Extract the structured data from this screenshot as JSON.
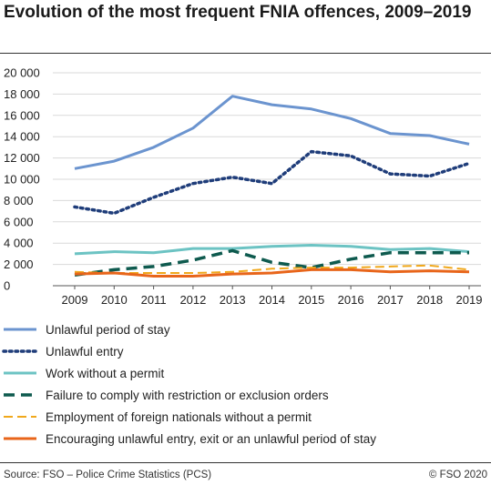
{
  "title": "Evolution of the most frequent FNIA offences, 2009–2019",
  "source": "Source: FSO – Police Crime Statistics (PCS)",
  "copyright": "© FSO 2020",
  "chart_data": {
    "type": "line",
    "x": [
      "2009",
      "2010",
      "2011",
      "2012",
      "2013",
      "2014",
      "2015",
      "2016",
      "2017",
      "2018",
      "2019"
    ],
    "ylim": [
      0,
      20000
    ],
    "yticks": [
      0,
      2000,
      4000,
      6000,
      8000,
      10000,
      12000,
      14000,
      16000,
      18000,
      20000
    ],
    "ytick_labels": [
      "0",
      "2 000",
      "4 000",
      "6 000",
      "8 000",
      "10 000",
      "12 000",
      "14 000",
      "16 000",
      "18 000",
      "20 000"
    ],
    "grid": "horizontal",
    "legend_position": "bottom",
    "series": [
      {
        "name": "Unlawful period of stay",
        "color": "#6b94cf",
        "style": "solid",
        "values": [
          11000,
          11700,
          13000,
          14800,
          17800,
          17000,
          16600,
          15700,
          14300,
          14100,
          13300
        ]
      },
      {
        "name": "Unlawful entry",
        "color": "#1f3d7a",
        "style": "dotted",
        "values": [
          7400,
          6800,
          8300,
          9600,
          10200,
          9600,
          12600,
          12200,
          10500,
          10300,
          11500
        ]
      },
      {
        "name": "Work without a permit",
        "color": "#6cc3c3",
        "style": "solid",
        "values": [
          3000,
          3200,
          3100,
          3500,
          3500,
          3700,
          3800,
          3700,
          3400,
          3500,
          3200
        ]
      },
      {
        "name": "Failure to comply with restriction or exclusion orders",
        "color": "#0e5a4e",
        "style": "dashed",
        "values": [
          1000,
          1500,
          1800,
          2400,
          3300,
          2200,
          1700,
          2500,
          3100,
          3100,
          3100
        ]
      },
      {
        "name": "Employment of foreign nationals without a permit",
        "color": "#f0a81c",
        "style": "dashed-light",
        "values": [
          1300,
          1200,
          1200,
          1200,
          1300,
          1600,
          1700,
          1700,
          1800,
          1900,
          1500
        ]
      },
      {
        "name": "Encouraging unlawful entry, exit or an unlawful period of stay",
        "color": "#e8651a",
        "style": "solid",
        "values": [
          1100,
          1200,
          900,
          900,
          1100,
          1200,
          1500,
          1500,
          1300,
          1400,
          1300
        ]
      }
    ]
  }
}
